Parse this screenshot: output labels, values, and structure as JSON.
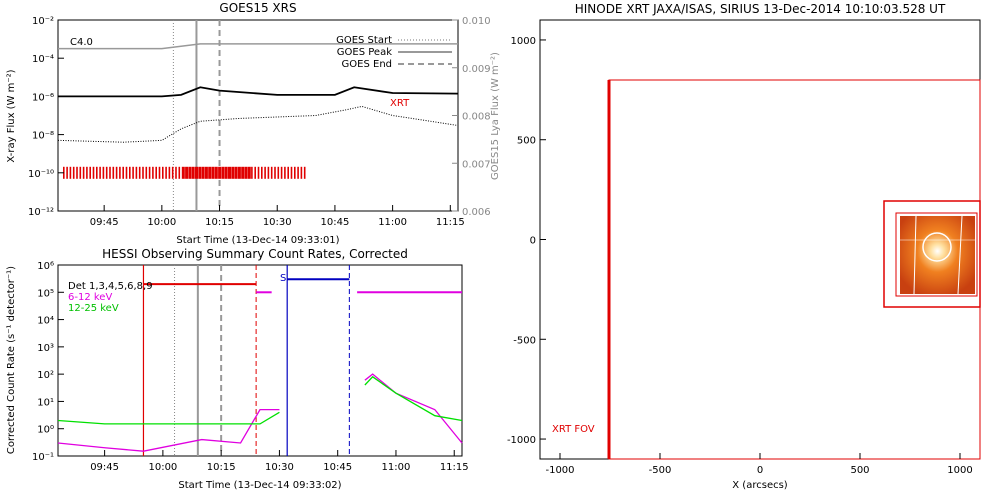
{
  "goes": {
    "title": "GOES15 XRS",
    "ylabel": "X-ray Flux (W m⁻²)",
    "ylabel_right": "GOES15 Lya Flux (W m⁻²)",
    "xlabel": "Start Time (13-Dec-14 09:33:01)",
    "class_label": "C4.0",
    "xrt_label": "XRT",
    "legend": [
      "GOES Start",
      "GOES Peak",
      "GOES End"
    ],
    "y_ticks": [
      "10⁻²",
      "10⁻⁴",
      "10⁻⁶",
      "10⁻⁸",
      "10⁻¹⁰",
      "10⁻¹²"
    ],
    "y_right_ticks": [
      "0.010",
      "0.009",
      "0.008",
      "0.007",
      "0.006"
    ],
    "x_ticks": [
      "09:45",
      "10:00",
      "10:15",
      "10:30",
      "10:45",
      "11:00",
      "11:15"
    ]
  },
  "hessi": {
    "title": "HESSI Observing Summary Count Rates, Corrected",
    "ylabel": "Corrected Count Rate (s⁻¹ detector⁻¹)",
    "xlabel": "Start Time (13-Dec-14 09:33:02)",
    "legend": [
      "Det 1,3,4,5,6,8,9",
      "6-12 keV",
      "12-25 keV"
    ],
    "legend_colors": [
      "#000000",
      "#e000e0",
      "#00e000"
    ],
    "s_marker": "S",
    "y_ticks": [
      "10⁶",
      "10⁵",
      "10⁴",
      "10³",
      "10²",
      "10¹",
      "10⁰",
      "10⁻¹"
    ],
    "x_ticks": [
      "09:45",
      "10:00",
      "10:15",
      "10:30",
      "10:45",
      "11:00",
      "11:15"
    ]
  },
  "xrt": {
    "title": "HINODE XRT JAXA/ISAS, SIRIUS 13-Dec-2014 10:10:03.528 UT",
    "xlabel": "X (arcsecs)",
    "fov_label": "XRT FOV",
    "x_ticks": [
      "-1000",
      "-500",
      "0",
      "500",
      "1000"
    ],
    "y_ticks": [
      "1000",
      "500",
      "0",
      "-500",
      "-1000"
    ]
  },
  "chart_data": [
    {
      "type": "line",
      "title": "GOES15 XRS",
      "xlabel": "Start Time (13-Dec-14 09:33:01)",
      "ylabel": "X-ray Flux (W m^-2)",
      "yscale": "log",
      "ylim": [
        1e-12,
        0.01
      ],
      "xlim": [
        "09:33",
        "11:17"
      ],
      "series": [
        {
          "name": "Lya (right axis)",
          "x": [
            "09:33",
            "10:00",
            "10:10",
            "10:30",
            "10:50",
            "11:17"
          ],
          "values": [
            0.0094,
            0.0094,
            0.0095,
            0.0095,
            0.0095,
            0.0095
          ]
        },
        {
          "x": [
            "09:33",
            "10:00",
            "10:05",
            "10:10",
            "10:15",
            "10:30",
            "10:45",
            "10:50",
            "11:00",
            "11:17"
          ],
          "values": [
            1e-06,
            1e-06,
            1.2e-06,
            3e-06,
            2e-06,
            1.2e-06,
            1.2e-06,
            3e-06,
            1.5e-06,
            1.4e-06
          ]
        },
        {
          "x": [
            "09:33",
            "09:50",
            "10:00",
            "10:05",
            "10:10",
            "10:20",
            "10:40",
            "10:48",
            "10:52",
            "11:00",
            "11:17"
          ],
          "values": [
            5e-09,
            4e-09,
            5e-09,
            2e-08,
            5e-08,
            7e-08,
            1e-07,
            2e-07,
            3e-07,
            1e-07,
            3e-08
          ]
        }
      ],
      "markers": {
        "goes_start": "10:03",
        "goes_peak": "10:09",
        "goes_end": "10:15"
      },
      "annotations": [
        "C4.0",
        "XRT"
      ],
      "legend_position": "top-right"
    },
    {
      "type": "line",
      "title": "HESSI Observing Summary Count Rates, Corrected",
      "xlabel": "Start Time (13-Dec-14 09:33:02)",
      "ylabel": "Corrected Count Rate (s^-1 detector^-1)",
      "yscale": "log",
      "ylim": [
        0.1,
        1000000.0
      ],
      "xlim": [
        "09:33",
        "11:17"
      ],
      "series": [
        {
          "name": "6-12 keV",
          "x": [
            "09:33",
            "09:45",
            "09:55",
            "10:10",
            "10:20",
            "10:25",
            "10:30",
            "10:32",
            "10:50",
            "10:52",
            "10:54",
            "11:00",
            "11:10",
            "11:17"
          ],
          "values": [
            0.3,
            0.2,
            0.15,
            0.4,
            0.3,
            5,
            5,
            null,
            null,
            60,
            100,
            20,
            5,
            0.3
          ]
        },
        {
          "name": "12-25 keV",
          "x": [
            "09:33",
            "09:45",
            "10:00",
            "10:15",
            "10:25",
            "10:30",
            "10:32",
            "10:50",
            "10:52",
            "10:54",
            "11:00",
            "11:10",
            "11:17"
          ],
          "values": [
            2,
            1.5,
            1.5,
            1.5,
            1.5,
            4,
            null,
            null,
            40,
            80,
            20,
            3,
            2
          ]
        }
      ],
      "attenuator_levels": {
        "red": 200000.0,
        "blue": 300000.0,
        "magenta": 100000.0
      },
      "legend_position": "top-left"
    }
  ]
}
